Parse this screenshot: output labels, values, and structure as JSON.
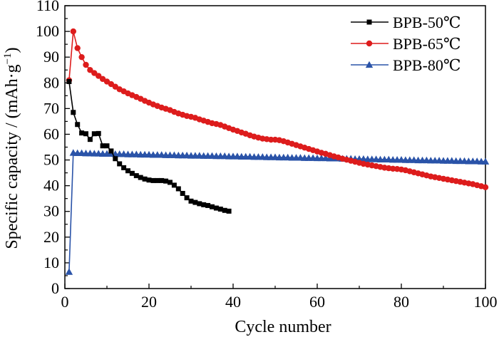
{
  "chart_data": {
    "type": "line",
    "title": "",
    "xlabel": "Cycle number",
    "ylabel": "Specific capacity / (mAh·g",
    "ylabel_sup": "−1",
    "ylabel_close": ")",
    "xlim": [
      0,
      100
    ],
    "ylim": [
      0,
      110
    ],
    "xticks": [
      0,
      20,
      40,
      60,
      80,
      100
    ],
    "yticks": [
      0,
      10,
      20,
      30,
      40,
      50,
      60,
      70,
      80,
      90,
      100,
      110
    ],
    "grid": false,
    "legend_position": "top-right",
    "series": [
      {
        "name": "BPB-50℃",
        "color": "#000000",
        "marker": "square",
        "x": [
          1,
          2,
          3,
          4,
          5,
          6,
          7,
          8,
          9,
          10,
          11,
          12,
          13,
          14,
          15,
          16,
          17,
          18,
          19,
          20,
          21,
          22,
          23,
          24,
          25,
          26,
          27,
          28,
          29,
          30,
          31,
          32,
          33,
          34,
          35,
          36,
          37,
          38,
          39
        ],
        "y": [
          80.5,
          68.5,
          63.8,
          60.5,
          60.2,
          58.0,
          60.2,
          60.3,
          55.5,
          55.5,
          53.5,
          50.5,
          48.5,
          47.0,
          45.8,
          44.8,
          43.9,
          43.2,
          42.6,
          42.2,
          42.0,
          42.0,
          42.0,
          41.8,
          41.3,
          40.2,
          38.8,
          37.0,
          35.3,
          34.0,
          33.5,
          33.0,
          32.6,
          32.3,
          31.8,
          31.3,
          30.9,
          30.4,
          30.1
        ]
      },
      {
        "name": "BPB-65℃",
        "color": "#dd1c1c",
        "marker": "circle",
        "x": [
          1,
          2,
          3,
          4,
          5,
          6,
          7,
          8,
          9,
          10,
          11,
          12,
          13,
          14,
          15,
          16,
          17,
          18,
          19,
          20,
          21,
          22,
          23,
          24,
          25,
          26,
          27,
          28,
          29,
          30,
          31,
          32,
          33,
          34,
          35,
          36,
          37,
          38,
          39,
          40,
          41,
          42,
          43,
          44,
          45,
          46,
          47,
          48,
          49,
          50,
          51,
          52,
          53,
          54,
          55,
          56,
          57,
          58,
          59,
          60,
          61,
          62,
          63,
          64,
          65,
          66,
          67,
          68,
          69,
          70,
          71,
          72,
          73,
          74,
          75,
          76,
          77,
          78,
          79,
          80,
          81,
          82,
          83,
          84,
          85,
          86,
          87,
          88,
          89,
          90,
          91,
          92,
          93,
          94,
          95,
          96,
          97,
          98,
          99,
          100
        ],
        "y": [
          81.0,
          100.0,
          93.5,
          90.0,
          87.0,
          85.0,
          83.8,
          82.7,
          81.5,
          80.5,
          79.5,
          78.5,
          77.5,
          76.7,
          75.9,
          75.2,
          74.5,
          73.8,
          73.0,
          72.3,
          71.6,
          71.0,
          70.4,
          69.9,
          69.4,
          68.7,
          68.1,
          67.6,
          67.1,
          66.8,
          66.4,
          65.8,
          65.3,
          64.8,
          64.3,
          64.0,
          63.6,
          63.0,
          62.4,
          61.8,
          61.3,
          60.7,
          60.2,
          59.6,
          59.1,
          58.7,
          58.3,
          58.1,
          57.9,
          57.9,
          57.7,
          57.3,
          56.8,
          56.3,
          55.8,
          55.3,
          54.8,
          54.3,
          53.8,
          53.3,
          52.8,
          52.4,
          51.9,
          51.4,
          51.0,
          50.5,
          50.1,
          49.7,
          49.3,
          48.9,
          48.5,
          48.2,
          47.9,
          47.6,
          47.3,
          47.0,
          46.8,
          46.6,
          46.5,
          46.3,
          46.0,
          45.6,
          45.2,
          44.8,
          44.4,
          44.0,
          43.6,
          43.3,
          43.0,
          42.7,
          42.4,
          42.1,
          41.8,
          41.5,
          41.2,
          40.9,
          40.6,
          40.2,
          39.8,
          39.4
        ]
      },
      {
        "name": "BPB-80℃",
        "color": "#2a53a8",
        "marker": "triangle",
        "x": [
          1,
          2,
          3,
          4,
          5,
          6,
          7,
          8,
          9,
          10,
          11,
          12,
          13,
          14,
          15,
          16,
          17,
          18,
          19,
          20,
          21,
          22,
          23,
          24,
          25,
          26,
          27,
          28,
          29,
          30,
          31,
          32,
          33,
          34,
          35,
          36,
          37,
          38,
          39,
          40,
          41,
          42,
          43,
          44,
          45,
          46,
          47,
          48,
          49,
          50,
          51,
          52,
          53,
          54,
          55,
          56,
          57,
          58,
          59,
          60,
          61,
          62,
          63,
          64,
          65,
          66,
          67,
          68,
          69,
          70,
          71,
          72,
          73,
          74,
          75,
          76,
          77,
          78,
          79,
          80,
          81,
          82,
          83,
          84,
          85,
          86,
          87,
          88,
          89,
          90,
          91,
          92,
          93,
          94,
          95,
          96,
          97,
          98,
          99,
          100
        ],
        "y": [
          6.5,
          52.8,
          52.7,
          52.7,
          52.6,
          52.6,
          52.5,
          52.5,
          52.4,
          52.4,
          52.4,
          52.3,
          52.3,
          52.3,
          52.2,
          52.2,
          52.2,
          52.1,
          52.1,
          52.1,
          52.0,
          52.0,
          52.0,
          51.9,
          51.9,
          51.9,
          51.8,
          51.8,
          51.8,
          51.7,
          51.7,
          51.7,
          51.6,
          51.6,
          51.6,
          51.5,
          51.5,
          51.5,
          51.4,
          51.4,
          51.4,
          51.3,
          51.3,
          51.3,
          51.2,
          51.2,
          51.2,
          51.1,
          51.1,
          51.1,
          51.0,
          51.0,
          51.0,
          50.9,
          50.9,
          50.9,
          50.8,
          50.8,
          50.8,
          50.7,
          50.7,
          50.7,
          50.6,
          50.6,
          50.6,
          50.5,
          50.5,
          50.5,
          50.4,
          50.4,
          50.4,
          50.3,
          50.3,
          50.3,
          50.2,
          50.2,
          50.2,
          50.1,
          50.1,
          50.1,
          50.0,
          50.0,
          50.0,
          49.9,
          49.9,
          49.9,
          49.8,
          49.8,
          49.8,
          49.7,
          49.7,
          49.7,
          49.6,
          49.6,
          49.6,
          49.5,
          49.5,
          49.5,
          49.4,
          49.4
        ]
      }
    ]
  }
}
